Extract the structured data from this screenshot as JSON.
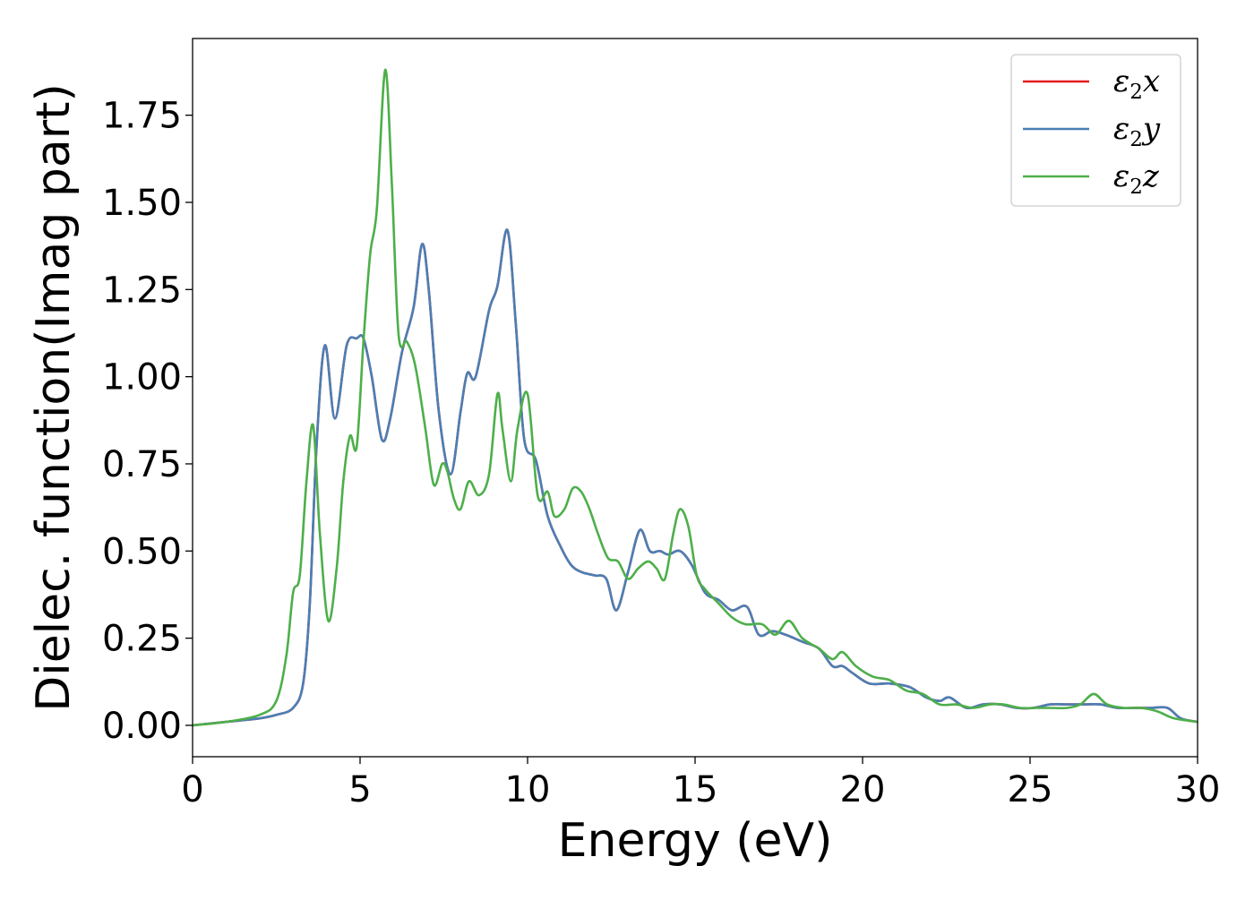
{
  "chart_data": {
    "type": "line",
    "title": "",
    "xlabel": "Energy (eV)",
    "ylabel": "Dielec. function(Imag part)",
    "xlim": [
      0,
      30
    ],
    "ylim": [
      -0.09,
      1.97
    ],
    "xticks": [
      0,
      5,
      10,
      15,
      20,
      25,
      30
    ],
    "xtick_labels": [
      "0",
      "5",
      "10",
      "15",
      "20",
      "25",
      "30"
    ],
    "yticks": [
      0.0,
      0.25,
      0.5,
      0.75,
      1.0,
      1.25,
      1.5,
      1.75
    ],
    "ytick_labels": [
      "0.00",
      "0.25",
      "0.50",
      "0.75",
      "1.00",
      "1.25",
      "1.50",
      "1.75"
    ],
    "grid": false,
    "legend_position": "top-right",
    "series": [
      {
        "name": "ε2x",
        "legend_main": "ε",
        "legend_sub": "2",
        "legend_var": "x",
        "color": "#e41a1c",
        "x": [
          0,
          1,
          2,
          2.5,
          3.0,
          3.3,
          3.5,
          3.7,
          3.95,
          4.25,
          4.6,
          4.9,
          5.1,
          5.35,
          5.65,
          5.9,
          6.25,
          6.6,
          6.85,
          7.05,
          7.35,
          7.7,
          8.0,
          8.2,
          8.45,
          8.85,
          9.1,
          9.4,
          9.65,
          9.9,
          10.25,
          10.6,
          11.0,
          11.3,
          11.6,
          12.0,
          12.35,
          12.65,
          13.0,
          13.35,
          13.65,
          13.95,
          14.2,
          14.55,
          14.9,
          15.3,
          15.7,
          16.1,
          16.55,
          16.9,
          17.3,
          17.7,
          18.2,
          18.7,
          19.1,
          19.4,
          19.7,
          20.2,
          20.8,
          21.4,
          21.9,
          22.3,
          22.6,
          23.1,
          23.6,
          24.1,
          24.6,
          25.1,
          25.6,
          26.1,
          26.6,
          27.1,
          27.6,
          28.1,
          28.6,
          29.1,
          29.5,
          30
        ],
        "values": [
          0.0,
          0.01,
          0.02,
          0.03,
          0.05,
          0.12,
          0.35,
          0.8,
          1.09,
          0.88,
          1.09,
          1.11,
          1.11,
          1.0,
          0.82,
          0.88,
          1.07,
          1.2,
          1.38,
          1.25,
          0.9,
          0.72,
          0.9,
          1.01,
          1.0,
          1.19,
          1.26,
          1.42,
          1.15,
          0.82,
          0.76,
          0.6,
          0.51,
          0.46,
          0.44,
          0.43,
          0.42,
          0.33,
          0.44,
          0.56,
          0.5,
          0.5,
          0.49,
          0.5,
          0.46,
          0.38,
          0.36,
          0.33,
          0.34,
          0.26,
          0.27,
          0.26,
          0.24,
          0.22,
          0.17,
          0.17,
          0.15,
          0.12,
          0.12,
          0.11,
          0.08,
          0.07,
          0.08,
          0.05,
          0.06,
          0.06,
          0.05,
          0.05,
          0.06,
          0.06,
          0.06,
          0.06,
          0.05,
          0.05,
          0.05,
          0.05,
          0.02,
          0.01
        ]
      },
      {
        "name": "ε2y",
        "legend_main": "ε",
        "legend_sub": "2",
        "legend_var": "y",
        "color": "#4a7fb5",
        "x": [
          0,
          1,
          2,
          2.5,
          3.0,
          3.3,
          3.5,
          3.7,
          3.95,
          4.25,
          4.6,
          4.9,
          5.1,
          5.35,
          5.65,
          5.9,
          6.25,
          6.6,
          6.85,
          7.05,
          7.35,
          7.7,
          8.0,
          8.2,
          8.45,
          8.85,
          9.1,
          9.4,
          9.65,
          9.9,
          10.25,
          10.6,
          11.0,
          11.3,
          11.6,
          12.0,
          12.35,
          12.65,
          13.0,
          13.35,
          13.65,
          13.95,
          14.2,
          14.55,
          14.9,
          15.3,
          15.7,
          16.1,
          16.55,
          16.9,
          17.3,
          17.7,
          18.2,
          18.7,
          19.1,
          19.4,
          19.7,
          20.2,
          20.8,
          21.4,
          21.9,
          22.3,
          22.6,
          23.1,
          23.6,
          24.1,
          24.6,
          25.1,
          25.6,
          26.1,
          26.6,
          27.1,
          27.6,
          28.1,
          28.6,
          29.1,
          29.5,
          30
        ],
        "values": [
          0.0,
          0.01,
          0.02,
          0.03,
          0.05,
          0.12,
          0.35,
          0.8,
          1.09,
          0.88,
          1.09,
          1.11,
          1.11,
          1.0,
          0.82,
          0.88,
          1.07,
          1.2,
          1.38,
          1.25,
          0.9,
          0.72,
          0.9,
          1.01,
          1.0,
          1.19,
          1.26,
          1.42,
          1.15,
          0.82,
          0.76,
          0.6,
          0.51,
          0.46,
          0.44,
          0.43,
          0.42,
          0.33,
          0.44,
          0.56,
          0.5,
          0.5,
          0.49,
          0.5,
          0.46,
          0.38,
          0.36,
          0.33,
          0.34,
          0.26,
          0.27,
          0.26,
          0.24,
          0.22,
          0.17,
          0.17,
          0.15,
          0.12,
          0.12,
          0.11,
          0.08,
          0.07,
          0.08,
          0.05,
          0.06,
          0.06,
          0.05,
          0.05,
          0.06,
          0.06,
          0.06,
          0.06,
          0.05,
          0.05,
          0.05,
          0.05,
          0.02,
          0.01
        ]
      },
      {
        "name": "ε2z",
        "legend_main": "ε",
        "legend_sub": "2",
        "legend_var": "z",
        "color": "#4daf4a",
        "x": [
          0,
          1,
          2,
          2.5,
          2.8,
          3.0,
          3.2,
          3.4,
          3.6,
          3.8,
          4.05,
          4.3,
          4.5,
          4.7,
          4.9,
          5.1,
          5.3,
          5.5,
          5.75,
          5.95,
          6.15,
          6.4,
          6.65,
          6.95,
          7.2,
          7.45,
          7.6,
          7.8,
          8.0,
          8.25,
          8.55,
          8.85,
          9.1,
          9.25,
          9.5,
          9.7,
          10.0,
          10.3,
          10.6,
          10.8,
          11.1,
          11.35,
          11.6,
          11.85,
          12.1,
          12.4,
          12.7,
          13.0,
          13.3,
          13.6,
          13.85,
          14.1,
          14.35,
          14.55,
          14.8,
          15.05,
          15.3,
          15.7,
          16.1,
          16.5,
          17.0,
          17.4,
          17.8,
          18.2,
          18.7,
          19.1,
          19.4,
          19.8,
          20.3,
          20.8,
          21.3,
          21.8,
          22.3,
          22.8,
          23.3,
          23.8,
          24.2,
          24.7,
          25.2,
          25.6,
          26.1,
          26.5,
          26.9,
          27.3,
          27.8,
          28.3,
          28.8,
          29.3,
          30
        ],
        "values": [
          0.0,
          0.01,
          0.03,
          0.07,
          0.2,
          0.38,
          0.43,
          0.7,
          0.86,
          0.55,
          0.3,
          0.45,
          0.7,
          0.83,
          0.8,
          1.1,
          1.35,
          1.48,
          1.88,
          1.55,
          1.12,
          1.1,
          1.03,
          0.85,
          0.69,
          0.75,
          0.73,
          0.65,
          0.62,
          0.7,
          0.66,
          0.72,
          0.95,
          0.85,
          0.7,
          0.85,
          0.95,
          0.66,
          0.67,
          0.6,
          0.62,
          0.68,
          0.67,
          0.62,
          0.55,
          0.48,
          0.47,
          0.42,
          0.45,
          0.47,
          0.45,
          0.42,
          0.55,
          0.62,
          0.57,
          0.43,
          0.39,
          0.35,
          0.31,
          0.29,
          0.29,
          0.26,
          0.3,
          0.25,
          0.22,
          0.19,
          0.21,
          0.17,
          0.14,
          0.13,
          0.1,
          0.09,
          0.06,
          0.06,
          0.05,
          0.06,
          0.06,
          0.05,
          0.05,
          0.05,
          0.05,
          0.06,
          0.09,
          0.06,
          0.05,
          0.05,
          0.04,
          0.02,
          0.01
        ]
      }
    ]
  }
}
